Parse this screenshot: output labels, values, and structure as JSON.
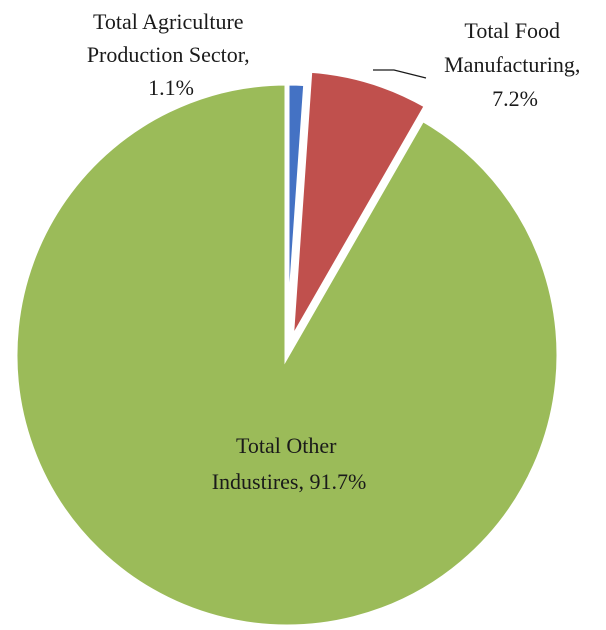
{
  "chart_data": {
    "type": "pie",
    "title": "",
    "series": [
      {
        "values": [
          {
            "category": "Total Agriculture Production Sector",
            "value": 1.1,
            "label": "1.1%",
            "color": "#4472C4"
          },
          {
            "category": "Total Food Manufacturing",
            "value": 7.2,
            "label": "7.2%",
            "color": "#C0504D"
          },
          {
            "category": "Total Other Industires",
            "value": 91.7,
            "label": "91.7%",
            "color": "#9BBB59"
          }
        ]
      }
    ],
    "data_labels": {
      "agriculture": {
        "line1": "Total Agriculture",
        "line2": "Production Sector,",
        "line3": "1.1%"
      },
      "food": {
        "line1": "Total Food",
        "line2": "Manufacturing,",
        "line3": "7.2%"
      },
      "other": {
        "line1": "Total Other",
        "line2": "Industires, 91.7%"
      }
    },
    "exploded_slices": [
      "Total Food Manufacturing"
    ],
    "legend": "none"
  }
}
